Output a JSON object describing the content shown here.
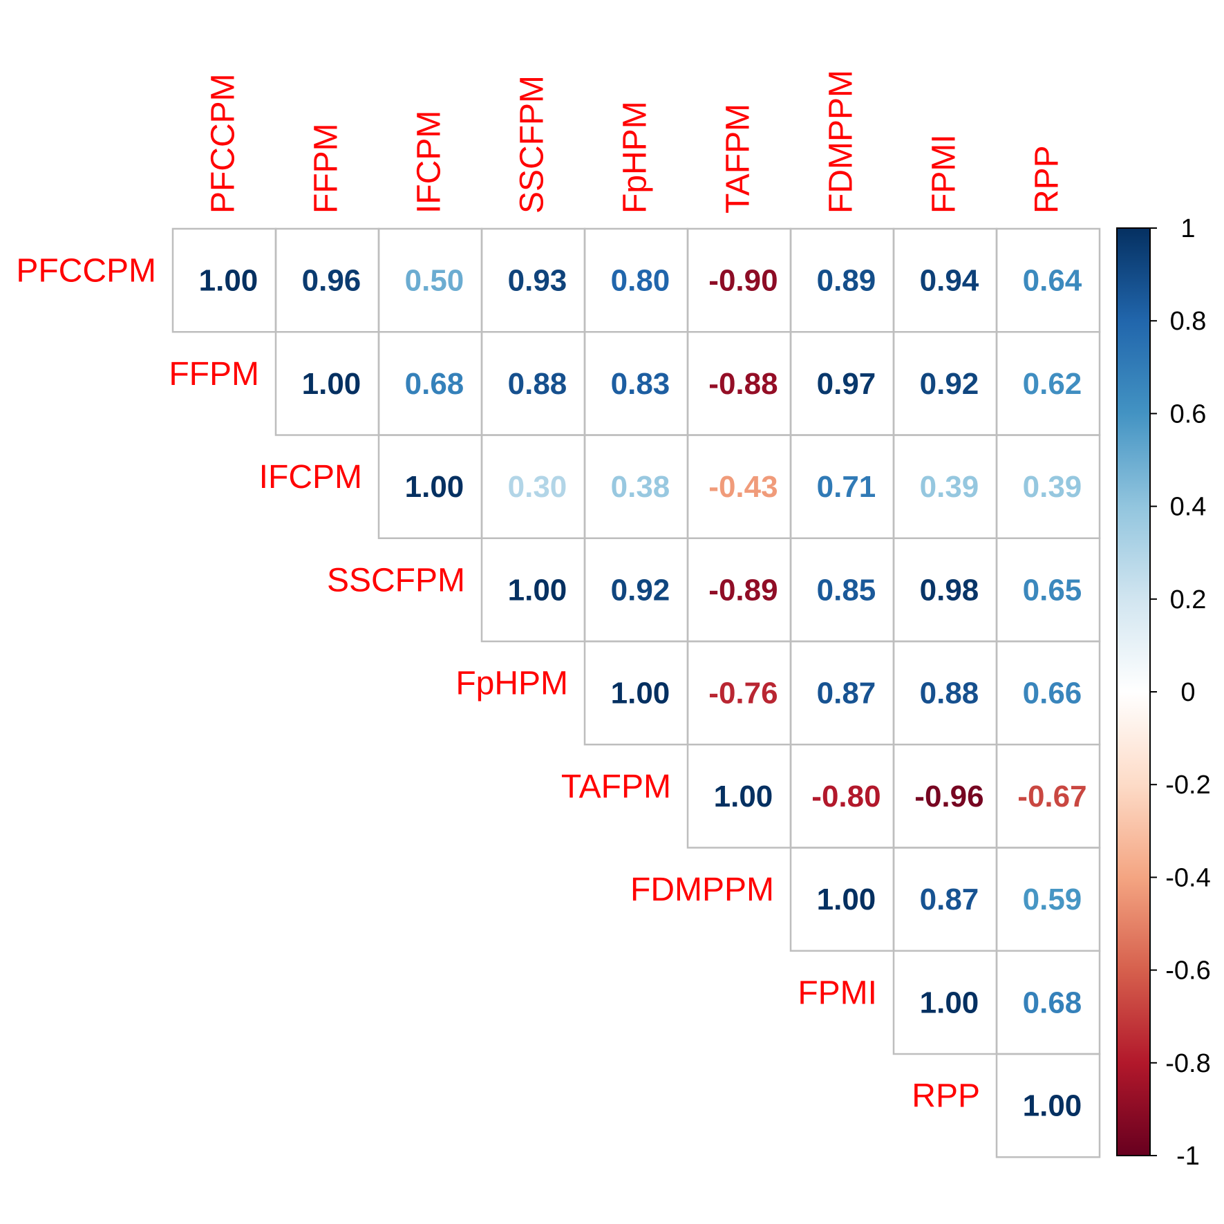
{
  "chart_data": {
    "type": "heatmap",
    "title": "",
    "variables": [
      "PFCCPM",
      "FFPM",
      "IFCPM",
      "SSCFPM",
      "FpHPM",
      "TAFPM",
      "FDMPPM",
      "FPMI",
      "RPP"
    ],
    "matrix": [
      [
        1.0,
        0.96,
        0.5,
        0.93,
        0.8,
        -0.9,
        0.89,
        0.94,
        0.64
      ],
      [
        null,
        1.0,
        0.68,
        0.88,
        0.83,
        -0.88,
        0.97,
        0.92,
        0.62
      ],
      [
        null,
        null,
        1.0,
        0.3,
        0.38,
        -0.43,
        0.71,
        0.39,
        0.39
      ],
      [
        null,
        null,
        null,
        1.0,
        0.92,
        -0.89,
        0.85,
        0.98,
        0.65
      ],
      [
        null,
        null,
        null,
        null,
        1.0,
        -0.76,
        0.87,
        0.88,
        0.66
      ],
      [
        null,
        null,
        null,
        null,
        null,
        1.0,
        -0.8,
        -0.96,
        -0.67
      ],
      [
        null,
        null,
        null,
        null,
        null,
        null,
        1.0,
        0.87,
        0.59
      ],
      [
        null,
        null,
        null,
        null,
        null,
        null,
        null,
        1.0,
        0.68
      ],
      [
        null,
        null,
        null,
        null,
        null,
        null,
        null,
        null,
        1.0
      ]
    ],
    "display": "upper-triangle numbers",
    "colorbar": {
      "range": [
        -1,
        1
      ],
      "ticks": [
        "1",
        "0.8",
        "0.6",
        "0.4",
        "0.2",
        "0",
        "-0.2",
        "-0.4",
        "-0.6",
        "-0.8",
        "-1"
      ],
      "tick_values": [
        1,
        0.8,
        0.6,
        0.4,
        0.2,
        0,
        -0.2,
        -0.4,
        -0.6,
        -0.8,
        -1
      ]
    },
    "colors": {
      "label": "#ff0000",
      "grid": "#bebebe",
      "scale": [
        "#67001f",
        "#b2182b",
        "#d6604d",
        "#f4a582",
        "#fddbc7",
        "#ffffff",
        "#d1e5f0",
        "#92c5de",
        "#4393c3",
        "#2166ac",
        "#053061"
      ]
    }
  }
}
